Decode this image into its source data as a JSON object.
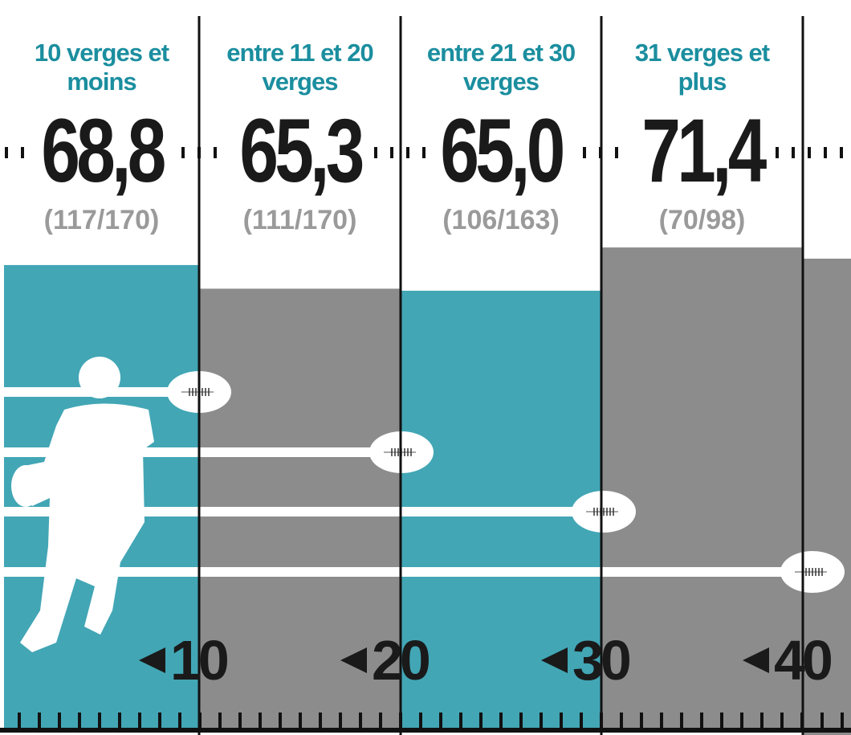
{
  "chart_data": {
    "type": "bar",
    "categories": [
      "10 verges et moins",
      "entre 11 et 20 verges",
      "entre 21 et 30 verges",
      "31 verges et plus"
    ],
    "values": [
      68.8,
      65.3,
      65.0,
      71.4
    ],
    "value_labels": [
      "68,8",
      "65,3",
      "65,0",
      "71,4"
    ],
    "ratios": [
      "(117/170)",
      "(111/170)",
      "(106/163)",
      "(70/98)"
    ],
    "colors": [
      "#42a6b5",
      "#8c8c8c",
      "#42a6b5",
      "#8c8c8c"
    ],
    "ylim": [
      0,
      108
    ],
    "yard_markers": [
      10,
      20,
      30,
      40
    ]
  }
}
